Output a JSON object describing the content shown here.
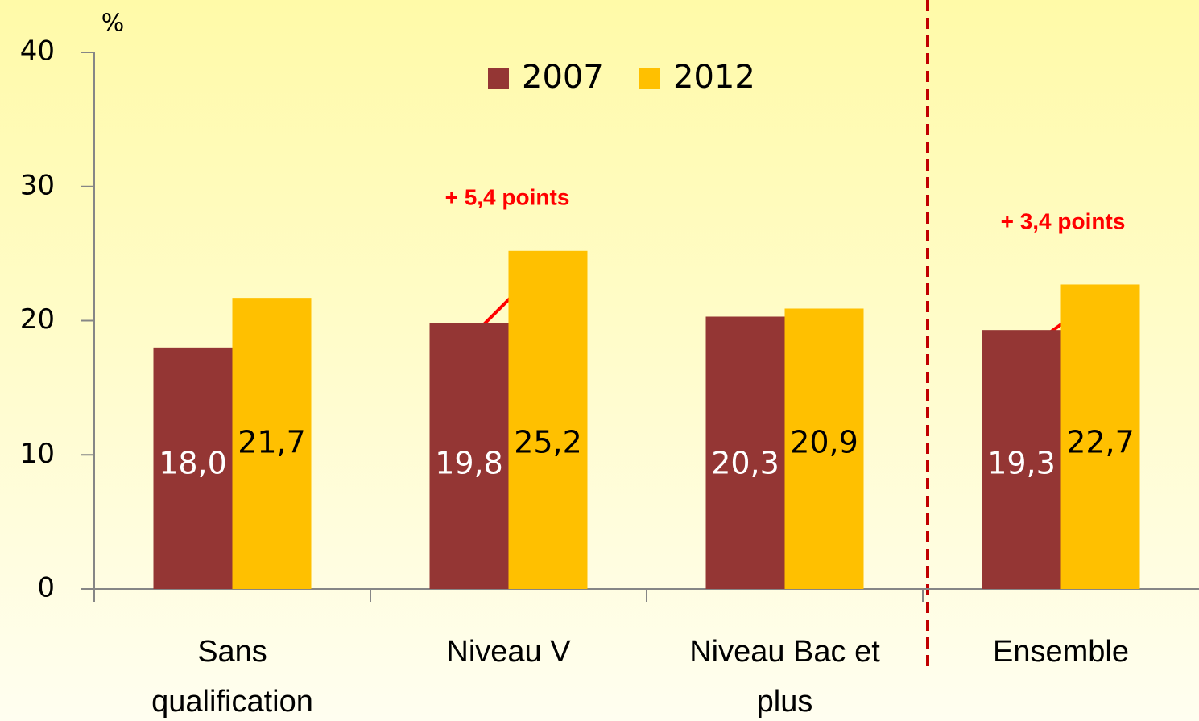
{
  "chart_data": {
    "type": "bar",
    "y_axis_label": "%",
    "categories": [
      "Sans qualification",
      "Niveau V",
      "Niveau Bac et plus",
      "Ensemble"
    ],
    "series": [
      {
        "name": "2007",
        "color": "#943634",
        "values": [
          18.0,
          19.8,
          20.3,
          19.3
        ],
        "value_labels": [
          "18,0",
          "19,8",
          "20,3",
          "19,3"
        ]
      },
      {
        "name": "2012",
        "color": "#ffc000",
        "values": [
          21.7,
          25.2,
          20.9,
          22.7
        ],
        "value_labels": [
          "21,7",
          "25,2",
          "20,9",
          "22,7"
        ]
      }
    ],
    "ylim": [
      0,
      40
    ],
    "yticks": [
      0,
      10,
      20,
      30,
      40
    ],
    "annotations": [
      "+ 5,4 points",
      "+ 3,4 points"
    ],
    "legend": "top"
  }
}
